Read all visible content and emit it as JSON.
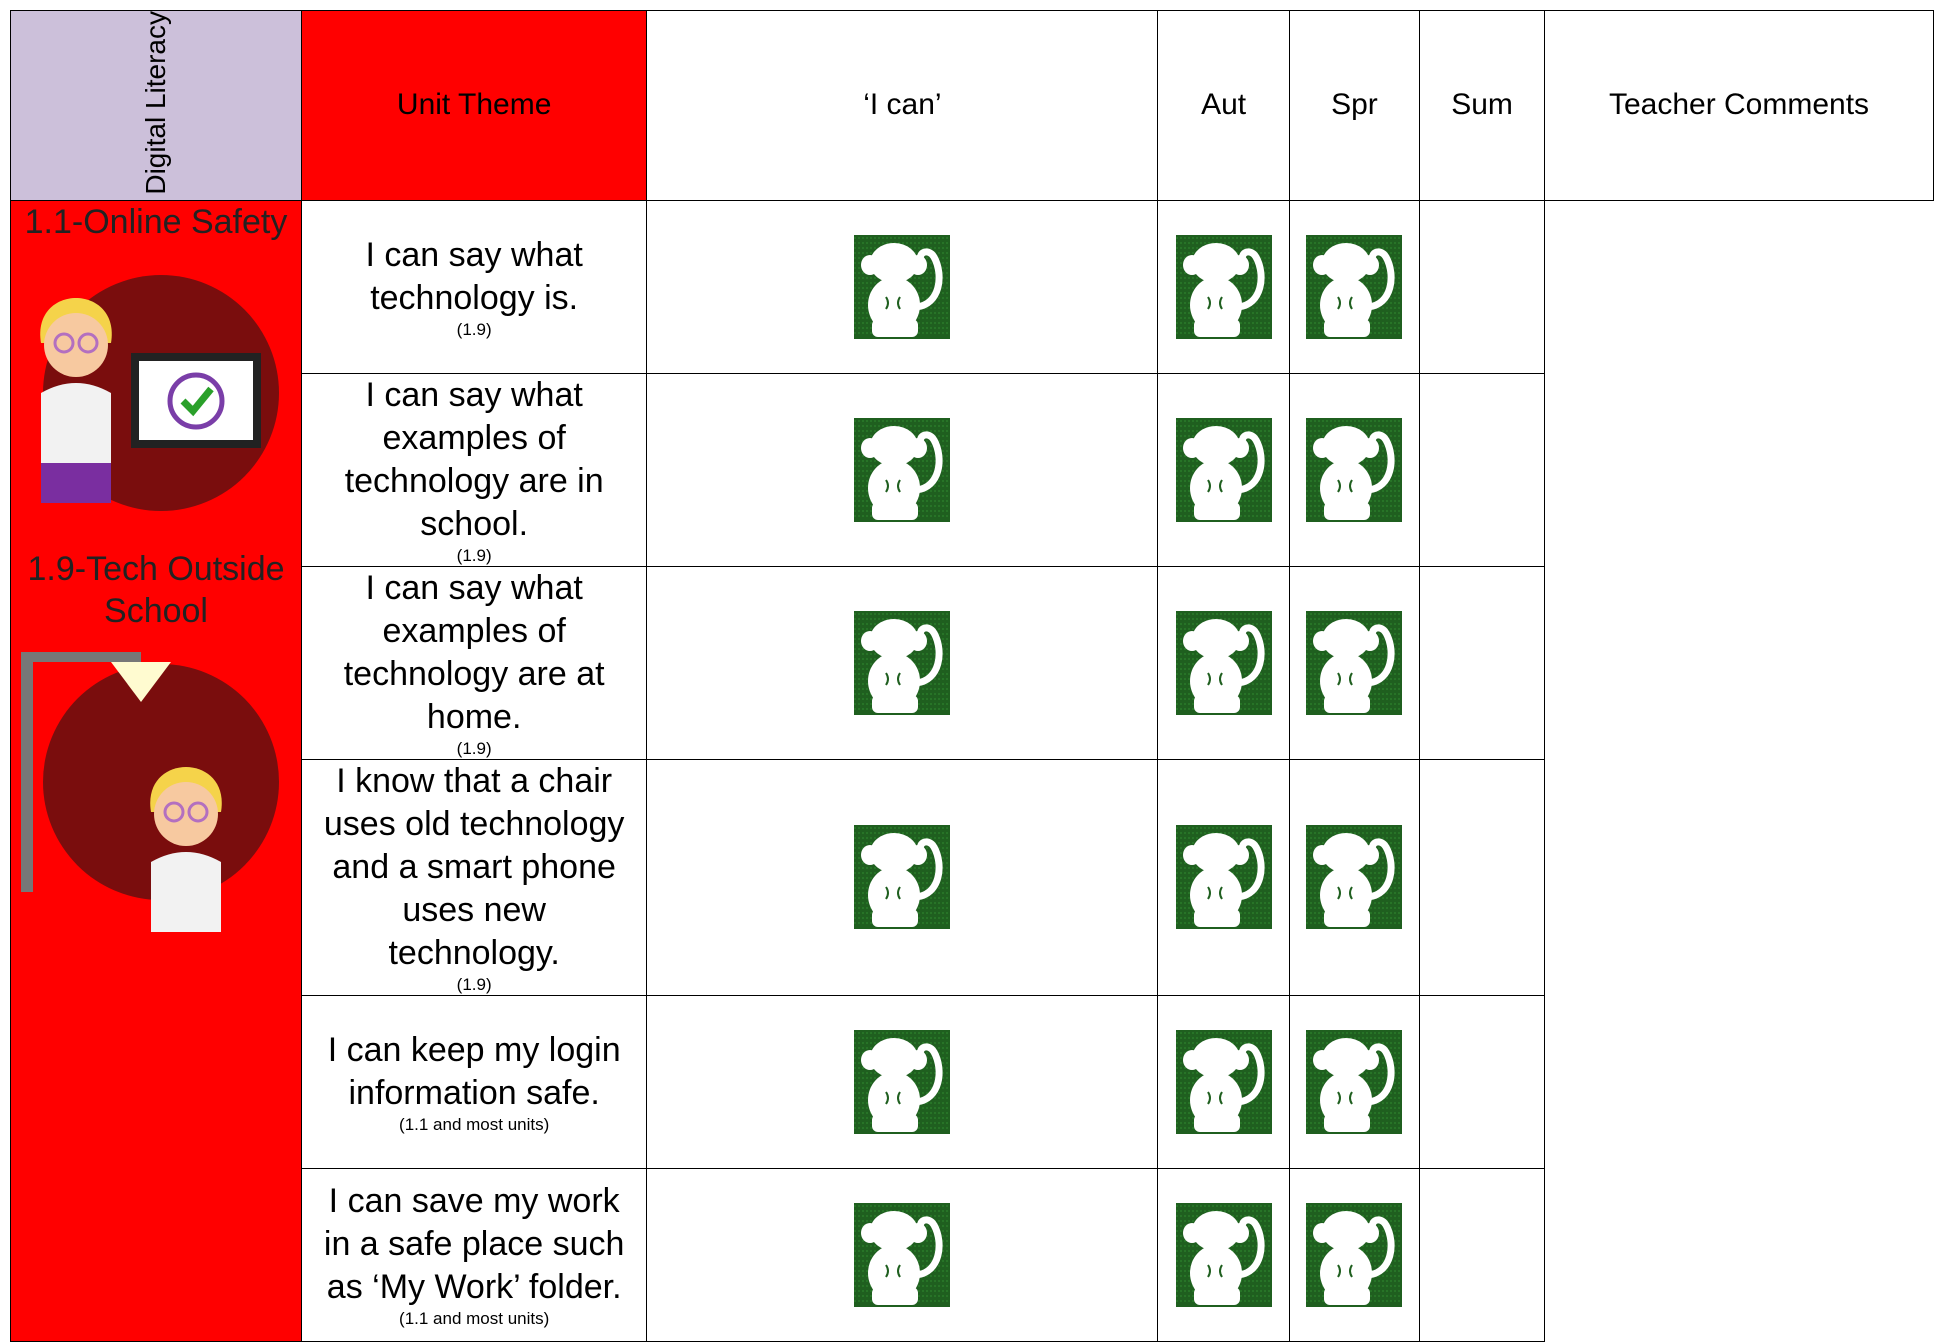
{
  "table": {
    "side_label": "Digital Literacy",
    "header": [
      "Unit Theme",
      "‘I can’",
      "Aut",
      "Spr",
      "Sum",
      "Teacher Comments"
    ],
    "units": [
      "1.1-Online Safety",
      "1.9-Tech Outside School"
    ],
    "rows": [
      {
        "statement": "I can say what technology is.",
        "ref": "(1.9)"
      },
      {
        "statement": "I can say what examples of technology are in school.",
        "ref": "(1.9)"
      },
      {
        "statement": "I can say what examples of technology are at home.",
        "ref": "(1.9)"
      },
      {
        "statement": "I know that a chair uses old technology and a smart phone uses new technology.",
        "ref": "(1.9)"
      },
      {
        "statement": "I can keep my login information safe.",
        "ref": "(1.1 and most units)"
      },
      {
        "statement": "I can save my work in a safe place such as ‘My Work’ folder.",
        "ref": "(1.1 and most units)"
      }
    ]
  }
}
